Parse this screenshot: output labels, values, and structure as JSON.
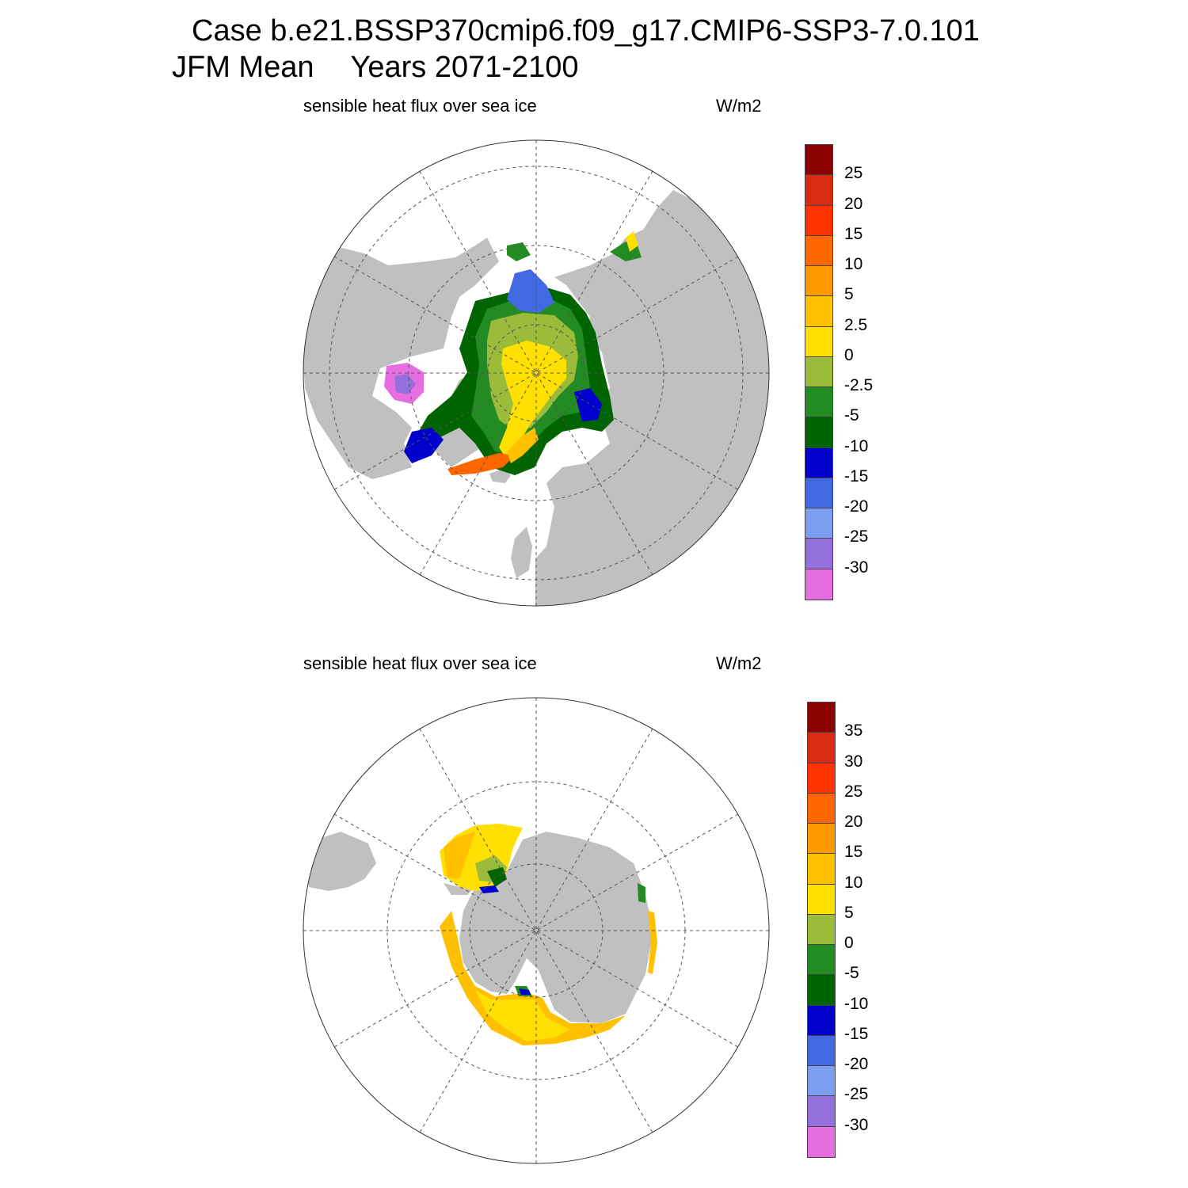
{
  "figure": {
    "title_line1": "Case b.e21.BSSP370cmip6.f09_g17.CMIP6-SSP3-7.0.101",
    "title_season": "JFM Mean",
    "title_years": "Years 2071-2100"
  },
  "colors": {
    "land": "#c0c0c0",
    "ocean": "#ffffff",
    "grid": "#555555",
    "palette": [
      "#e66ee0",
      "#9370db",
      "#7b9ef0",
      "#4169e1",
      "#0000cd",
      "#006400",
      "#228b22",
      "#9abc3a",
      "#ffe000",
      "#ffc000",
      "#ff9900",
      "#ff6600",
      "#ff3300",
      "#d92b12",
      "#8b0000"
    ]
  },
  "panels": [
    {
      "id": "arctic",
      "hemisphere": "north",
      "variable_label": "sensible heat flux over sea ice",
      "units": "W/m2",
      "colorbar": {
        "labels": [
          "25",
          "20",
          "15",
          "10",
          "5",
          "2.5",
          "0",
          "-2.5",
          "-5",
          "-10",
          "-15",
          "-20",
          "-25",
          "-30"
        ]
      }
    },
    {
      "id": "antarctic",
      "hemisphere": "south",
      "variable_label": "sensible heat flux over sea ice",
      "units": "W/m2",
      "colorbar": {
        "labels": [
          "35",
          "30",
          "25",
          "20",
          "15",
          "10",
          "5",
          "0",
          "-5",
          "-10",
          "-15",
          "-20",
          "-25",
          "-30"
        ]
      }
    }
  ]
}
